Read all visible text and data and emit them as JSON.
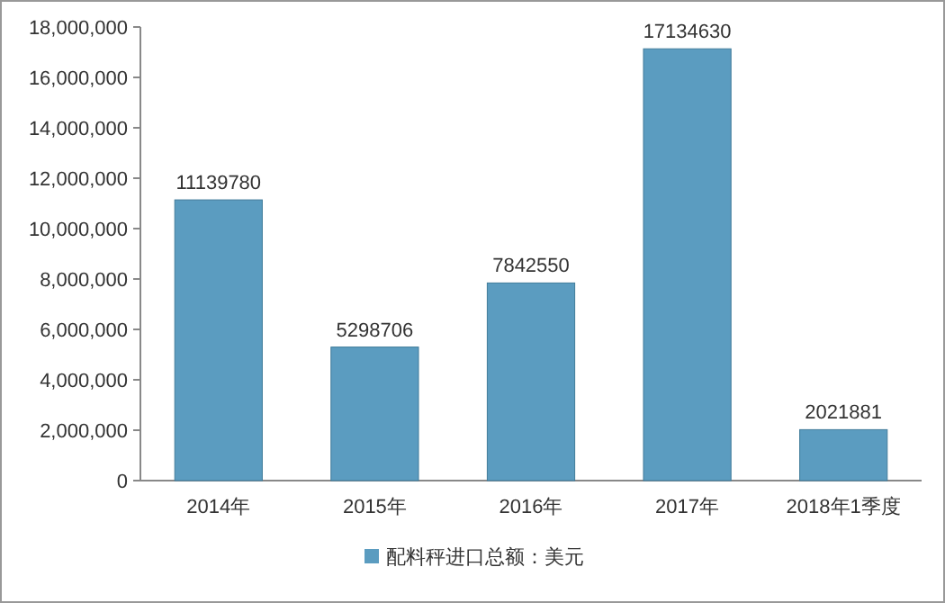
{
  "chart_data": {
    "type": "bar",
    "categories": [
      "2014年",
      "2015年",
      "2016年",
      "2017年",
      "2018年1季度"
    ],
    "series": [
      {
        "name": "配料秤进口总额：美元",
        "color": "#5b9cc0",
        "values": [
          11139780,
          5298706,
          7842550,
          17134630,
          2021881
        ]
      }
    ],
    "ylim": [
      0,
      18000000
    ],
    "yticks": [
      {
        "value": 0,
        "label": "0"
      },
      {
        "value": 2000000,
        "label": "2,000,000"
      },
      {
        "value": 4000000,
        "label": "4,000,000"
      },
      {
        "value": 6000000,
        "label": "6,000,000"
      },
      {
        "value": 8000000,
        "label": "8,000,000"
      },
      {
        "value": 10000000,
        "label": "10,000,000"
      },
      {
        "value": 12000000,
        "label": "12,000,000"
      },
      {
        "value": 14000000,
        "label": "14,000,000"
      },
      {
        "value": 16000000,
        "label": "16,000,000"
      },
      {
        "value": 18000000,
        "label": "18,000,000"
      }
    ],
    "data_labels": true,
    "grid": false,
    "legend": "bottom"
  }
}
